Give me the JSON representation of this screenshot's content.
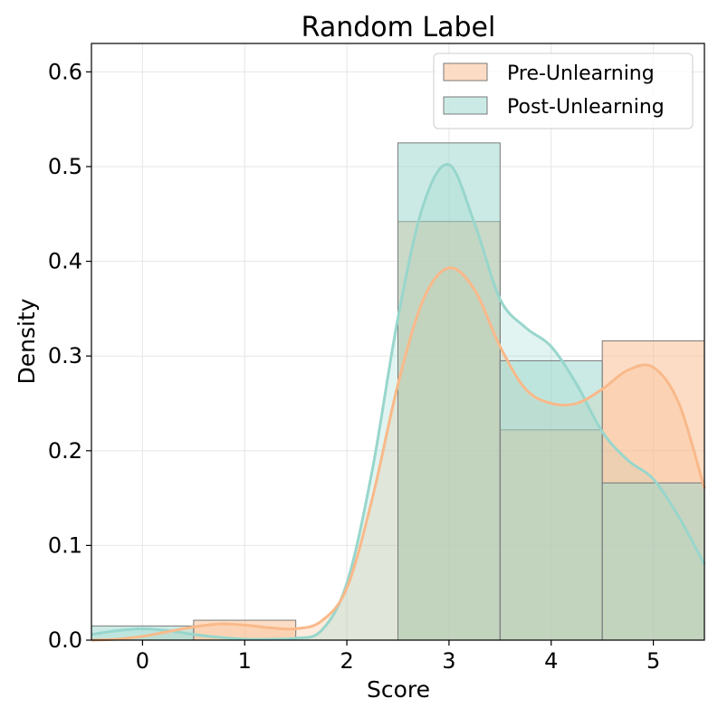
{
  "chart_data": {
    "type": "bar",
    "title": "Random Label",
    "xlabel": "Score",
    "ylabel": "Density",
    "xlim": [
      -0.5,
      5.5
    ],
    "ylim": [
      0,
      0.63
    ],
    "x_ticks": [
      0,
      1,
      2,
      3,
      4,
      5
    ],
    "y_ticks": [
      0.0,
      0.1,
      0.2,
      0.3,
      0.4,
      0.5,
      0.6
    ],
    "y_tick_labels": [
      "0.0",
      "0.1",
      "0.2",
      "0.3",
      "0.4",
      "0.5",
      "0.6"
    ],
    "grid": true,
    "legend_position": "top-right",
    "categories": [
      0,
      1,
      2,
      3,
      4,
      5
    ],
    "series": [
      {
        "name": "Pre-Unlearning",
        "color": "#f9b98a",
        "values": [
          0.0,
          0.021,
          0.0,
          0.442,
          0.222,
          0.316
        ],
        "kde": {
          "x": [
            -0.5,
            -0.25,
            0,
            0.25,
            0.5,
            0.75,
            1,
            1.25,
            1.5,
            1.75,
            2,
            2.25,
            2.5,
            2.75,
            3,
            3.25,
            3.5,
            3.75,
            4,
            4.25,
            4.5,
            4.75,
            5,
            5.25,
            5.5
          ],
          "y": [
            0.0,
            0.001,
            0.004,
            0.009,
            0.014,
            0.017,
            0.016,
            0.013,
            0.012,
            0.02,
            0.055,
            0.15,
            0.27,
            0.36,
            0.393,
            0.37,
            0.31,
            0.265,
            0.25,
            0.25,
            0.265,
            0.285,
            0.288,
            0.25,
            0.16
          ]
        }
      },
      {
        "name": "Post-Unlearning",
        "color": "#98d6cc",
        "values": [
          0.015,
          0.0,
          0.0,
          0.525,
          0.295,
          0.166
        ],
        "kde": {
          "x": [
            -0.5,
            -0.25,
            0,
            0.25,
            0.5,
            0.75,
            1,
            1.25,
            1.5,
            1.75,
            2,
            2.25,
            2.5,
            2.75,
            3,
            3.25,
            3.5,
            3.75,
            4,
            4.25,
            4.5,
            4.75,
            5,
            5.25,
            5.5
          ],
          "y": [
            0.006,
            0.01,
            0.012,
            0.01,
            0.006,
            0.003,
            0.001,
            0.001,
            0.002,
            0.01,
            0.06,
            0.18,
            0.34,
            0.46,
            0.502,
            0.44,
            0.36,
            0.33,
            0.31,
            0.27,
            0.22,
            0.19,
            0.17,
            0.13,
            0.08
          ]
        }
      }
    ]
  }
}
